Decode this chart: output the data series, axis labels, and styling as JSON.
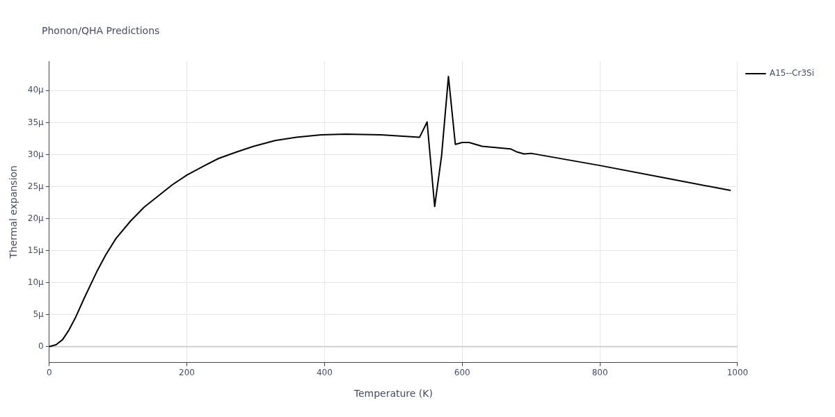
{
  "chart_data": {
    "type": "line",
    "title": "Phonon/QHA Predictions",
    "xlabel": "Temperature (K)",
    "ylabel": "Thermal expansion",
    "x": [
      0,
      10,
      19.5,
      28.7,
      38,
      51,
      70,
      82,
      97,
      118,
      138,
      159,
      179,
      200,
      226,
      246,
      272,
      297,
      328,
      359,
      395,
      431,
      482,
      538,
      549,
      560,
      570,
      580,
      590,
      600,
      610,
      629,
      670,
      680,
      690,
      700,
      800,
      990
    ],
    "series": [
      {
        "name": "A15--Cr3Si",
        "color": "#000000",
        "values": [
          0,
          0.3,
          1.1,
          2.6,
          4.5,
          7.6,
          11.9,
          14.3,
          16.9,
          19.6,
          21.8,
          23.6,
          25.3,
          26.8,
          28.3,
          29.4,
          30.4,
          31.3,
          32.2,
          32.7,
          33.1,
          33.2,
          33.1,
          32.7,
          35.1,
          21.9,
          29.8,
          42.2,
          31.6,
          31.9,
          31.9,
          31.3,
          30.9,
          30.4,
          30.1,
          30.2,
          28.3,
          24.4
        ]
      }
    ],
    "xlim": [
      0,
      1000
    ],
    "xticks": [
      0,
      200,
      400,
      600,
      800,
      1000
    ],
    "ylim": [
      -2.5,
      44.6
    ],
    "yticks": [
      0,
      {
        "value": 5,
        "label": "5μ"
      },
      {
        "value": 10,
        "label": "10μ"
      },
      {
        "value": 15,
        "label": "15μ"
      },
      {
        "value": 20,
        "label": "20μ"
      },
      {
        "value": 25,
        "label": "25μ"
      },
      {
        "value": 30,
        "label": "30μ"
      },
      {
        "value": 35,
        "label": "35μ"
      },
      {
        "value": 40,
        "label": "40μ"
      }
    ],
    "grid": true,
    "legend": "top right",
    "marker": "none",
    "line_style": "solid"
  }
}
